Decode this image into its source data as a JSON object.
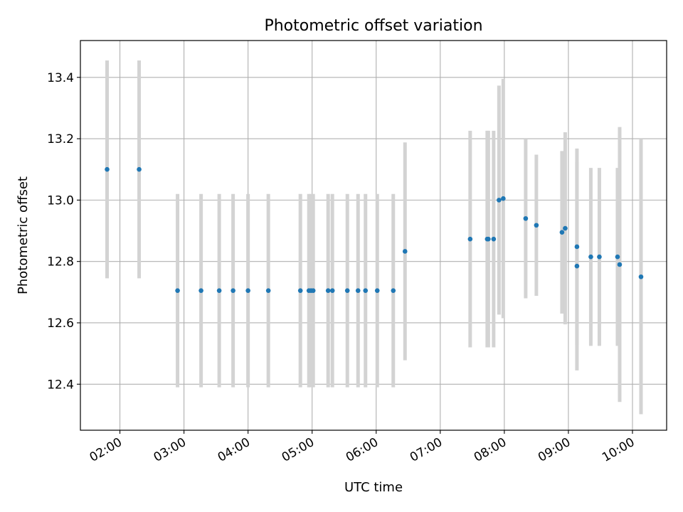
{
  "chart_data": {
    "type": "scatter",
    "title": "Photometric offset variation",
    "xlabel": "UTC time",
    "ylabel": "Photometric offset",
    "xlim": [
      "01:23",
      "10:32"
    ],
    "ylim": [
      12.25,
      13.52
    ],
    "grid": true,
    "x_ticks": [
      "02:00",
      "03:00",
      "04:00",
      "05:00",
      "06:00",
      "07:00",
      "08:00",
      "09:00",
      "10:00"
    ],
    "y_ticks": [
      "12.4",
      "12.6",
      "12.8",
      "13.0",
      "13.2",
      "13.4"
    ],
    "points": [
      {
        "t": "01:48",
        "y": 13.1,
        "err": 0.355
      },
      {
        "t": "02:18",
        "y": 13.1,
        "err": 0.355
      },
      {
        "t": "02:54",
        "y": 12.705,
        "err": 0.315
      },
      {
        "t": "03:16",
        "y": 12.705,
        "err": 0.315
      },
      {
        "t": "03:33",
        "y": 12.705,
        "err": 0.315
      },
      {
        "t": "03:46",
        "y": 12.705,
        "err": 0.315
      },
      {
        "t": "04:00",
        "y": 12.705,
        "err": 0.315
      },
      {
        "t": "04:19",
        "y": 12.705,
        "err": 0.315
      },
      {
        "t": "04:49",
        "y": 12.705,
        "err": 0.315
      },
      {
        "t": "04:57",
        "y": 12.705,
        "err": 0.315
      },
      {
        "t": "04:59",
        "y": 12.705,
        "err": 0.315
      },
      {
        "t": "05:01",
        "y": 12.705,
        "err": 0.315
      },
      {
        "t": "05:15",
        "y": 12.705,
        "err": 0.315
      },
      {
        "t": "05:19",
        "y": 12.705,
        "err": 0.315
      },
      {
        "t": "05:33",
        "y": 12.705,
        "err": 0.315
      },
      {
        "t": "05:43",
        "y": 12.705,
        "err": 0.315
      },
      {
        "t": "05:50",
        "y": 12.705,
        "err": 0.315
      },
      {
        "t": "06:01",
        "y": 12.705,
        "err": 0.315
      },
      {
        "t": "06:16",
        "y": 12.705,
        "err": 0.315
      },
      {
        "t": "06:27",
        "y": 12.833,
        "err": 0.355
      },
      {
        "t": "07:28",
        "y": 12.873,
        "err": 0.353
      },
      {
        "t": "07:44",
        "y": 12.873,
        "err": 0.353
      },
      {
        "t": "07:45",
        "y": 12.873,
        "err": 0.353
      },
      {
        "t": "07:50",
        "y": 12.873,
        "err": 0.353
      },
      {
        "t": "07:55",
        "y": 13.0,
        "err": 0.373
      },
      {
        "t": "07:59",
        "y": 13.005,
        "err": 0.39
      },
      {
        "t": "08:20",
        "y": 12.94,
        "err": 0.26
      },
      {
        "t": "08:30",
        "y": 12.918,
        "err": 0.23
      },
      {
        "t": "08:54",
        "y": 12.895,
        "err": 0.265
      },
      {
        "t": "08:57",
        "y": 12.908,
        "err": 0.313
      },
      {
        "t": "09:08",
        "y": 12.848,
        "err": 0.32
      },
      {
        "t": "09:08",
        "y": 12.785,
        "err": 0.34
      },
      {
        "t": "09:21",
        "y": 12.815,
        "err": 0.29
      },
      {
        "t": "09:29",
        "y": 12.815,
        "err": 0.29
      },
      {
        "t": "09:46",
        "y": 12.815,
        "err": 0.29
      },
      {
        "t": "09:48",
        "y": 12.79,
        "err": 0.448
      },
      {
        "t": "10:08",
        "y": 12.75,
        "err": 0.448
      }
    ]
  },
  "colors": {
    "point": "#1f77b4",
    "errorbar": "#d3d3d3",
    "grid": "#b0b0b0",
    "axis": "#000000"
  }
}
